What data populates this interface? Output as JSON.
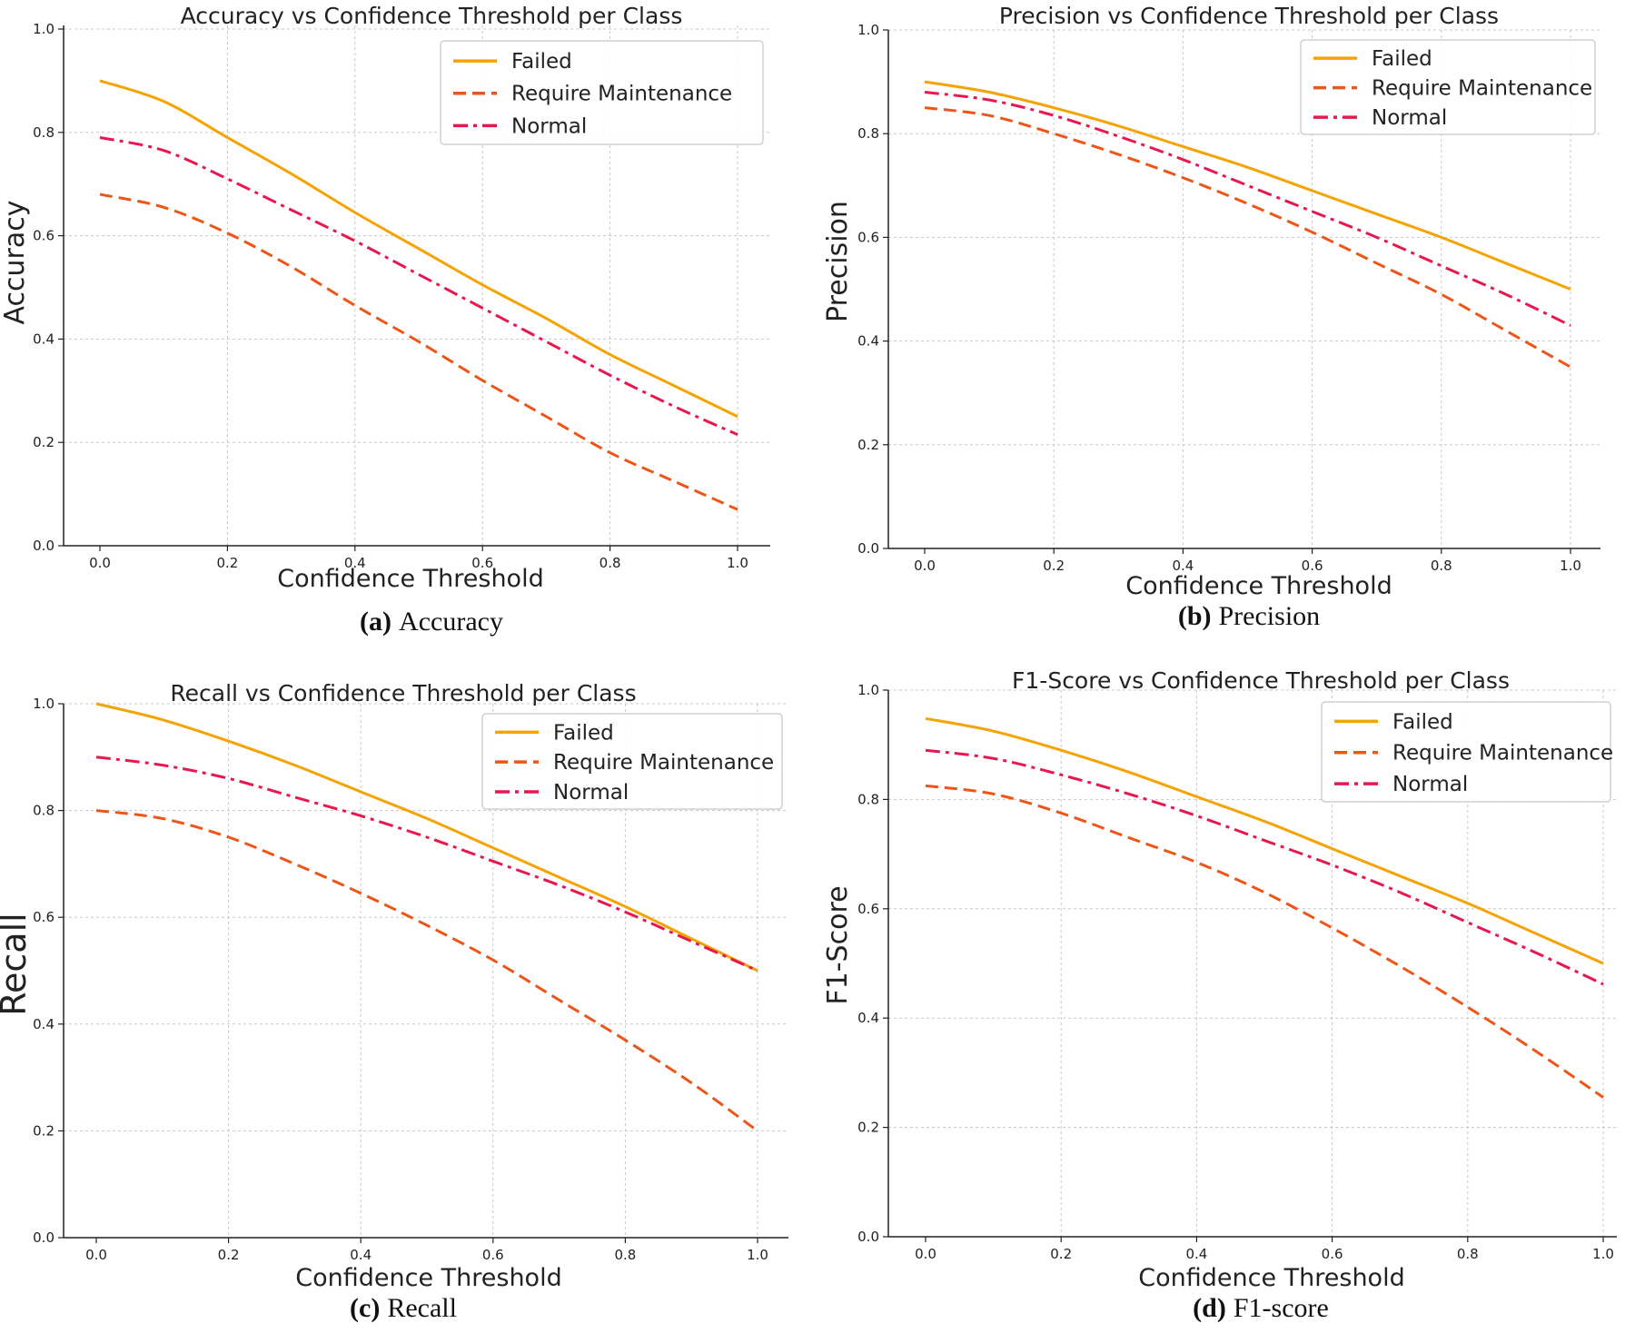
{
  "colors": {
    "failed": "#f5a300",
    "require_maintenance": "#ee5518",
    "normal": "#e8174f",
    "grid": "#c8c8c8",
    "axis": "#222222"
  },
  "chart_data": [
    {
      "type": "line",
      "title": "Accuracy vs Confidence Threshold per Class",
      "xlabel": "Confidence Threshold",
      "ylabel": "Accuracy",
      "xlim": [
        0,
        1
      ],
      "ylim": [
        0,
        1
      ],
      "xticks": [
        "0.0",
        "0.2",
        "0.4",
        "0.6",
        "0.8",
        "1.0"
      ],
      "yticks": [
        "0.0",
        "0.2",
        "0.4",
        "0.6",
        "0.8",
        "1.0"
      ],
      "grid": true,
      "legend": "top-right",
      "caption": {
        "label": "(a)",
        "text": "Accuracy"
      },
      "x": [
        0.0,
        0.1,
        0.2,
        0.3,
        0.4,
        0.5,
        0.6,
        0.7,
        0.8,
        0.9,
        1.0
      ],
      "series": [
        {
          "name": "Failed",
          "style": "solid",
          "values": [
            0.9,
            0.86,
            0.79,
            0.72,
            0.645,
            0.575,
            0.505,
            0.44,
            0.37,
            0.31,
            0.25
          ]
        },
        {
          "name": "Require Maintenance",
          "style": "dashed",
          "values": [
            0.68,
            0.655,
            0.605,
            0.54,
            0.465,
            0.395,
            0.32,
            0.25,
            0.18,
            0.125,
            0.07
          ]
        },
        {
          "name": "Normal",
          "style": "dashdot",
          "values": [
            0.79,
            0.765,
            0.71,
            0.65,
            0.59,
            0.525,
            0.46,
            0.395,
            0.33,
            0.27,
            0.215
          ]
        }
      ]
    },
    {
      "type": "line",
      "title": "Precision vs Confidence Threshold per Class",
      "xlabel": "Confidence Threshold",
      "ylabel": "Precision",
      "xlim": [
        0,
        1
      ],
      "ylim": [
        0,
        1
      ],
      "xticks": [
        "0.0",
        "0.2",
        "0.4",
        "0.6",
        "0.8",
        "1.0"
      ],
      "yticks": [
        "0.0",
        "0.2",
        "0.4",
        "0.6",
        "0.8",
        "1.0"
      ],
      "grid": true,
      "legend": "top-right",
      "caption": {
        "label": "(b)",
        "text": "Precision"
      },
      "x": [
        0.0,
        0.1,
        0.2,
        0.3,
        0.4,
        0.5,
        0.6,
        0.7,
        0.8,
        0.9,
        1.0
      ],
      "series": [
        {
          "name": "Failed",
          "style": "solid",
          "values": [
            0.9,
            0.88,
            0.85,
            0.815,
            0.775,
            0.735,
            0.69,
            0.645,
            0.6,
            0.55,
            0.5
          ]
        },
        {
          "name": "Require Maintenance",
          "style": "dashed",
          "values": [
            0.85,
            0.835,
            0.8,
            0.76,
            0.715,
            0.665,
            0.61,
            0.55,
            0.49,
            0.42,
            0.35
          ]
        },
        {
          "name": "Normal",
          "style": "dashdot",
          "values": [
            0.88,
            0.865,
            0.835,
            0.795,
            0.75,
            0.7,
            0.65,
            0.6,
            0.545,
            0.49,
            0.43
          ]
        }
      ]
    },
    {
      "type": "line",
      "title": "Recall vs Confidence Threshold per Class",
      "xlabel": "Confidence Threshold",
      "ylabel": "Recall",
      "xlim": [
        0,
        1
      ],
      "ylim": [
        0,
        1
      ],
      "xticks": [
        "0.0",
        "0.2",
        "0.4",
        "0.6",
        "0.8",
        "1.0"
      ],
      "yticks": [
        "0.0",
        "0.2",
        "0.4",
        "0.6",
        "0.8",
        "1.0"
      ],
      "grid": true,
      "legend": "top-right",
      "caption": {
        "label": "(c)",
        "text": "Recall"
      },
      "x": [
        0.0,
        0.1,
        0.2,
        0.3,
        0.4,
        0.5,
        0.6,
        0.7,
        0.8,
        0.9,
        1.0
      ],
      "series": [
        {
          "name": "Failed",
          "style": "solid",
          "values": [
            1.0,
            0.97,
            0.93,
            0.885,
            0.835,
            0.785,
            0.73,
            0.675,
            0.62,
            0.56,
            0.5
          ]
        },
        {
          "name": "Require Maintenance",
          "style": "dashed",
          "values": [
            0.8,
            0.785,
            0.75,
            0.7,
            0.645,
            0.585,
            0.52,
            0.445,
            0.37,
            0.29,
            0.2
          ]
        },
        {
          "name": "Normal",
          "style": "dashdot",
          "values": [
            0.9,
            0.885,
            0.86,
            0.825,
            0.79,
            0.75,
            0.705,
            0.66,
            0.61,
            0.555,
            0.5
          ]
        }
      ]
    },
    {
      "type": "line",
      "title": "F1-Score vs Confidence Threshold per Class",
      "xlabel": "Confidence Threshold",
      "ylabel": "F1-Score",
      "xlim": [
        0,
        1
      ],
      "ylim": [
        0,
        1
      ],
      "xticks": [
        "0.0",
        "0.2",
        "0.4",
        "0.6",
        "0.8",
        "1.0"
      ],
      "yticks": [
        "0.0",
        "0.2",
        "0.4",
        "0.6",
        "0.8",
        "1.0"
      ],
      "grid": true,
      "legend": "top-right",
      "caption": {
        "label": "(d)",
        "text": "F1-score"
      },
      "x": [
        0.0,
        0.1,
        0.2,
        0.3,
        0.4,
        0.5,
        0.6,
        0.7,
        0.8,
        0.9,
        1.0
      ],
      "series": [
        {
          "name": "Failed",
          "style": "solid",
          "values": [
            0.948,
            0.925,
            0.89,
            0.85,
            0.805,
            0.76,
            0.71,
            0.66,
            0.61,
            0.555,
            0.5
          ]
        },
        {
          "name": "Require Maintenance",
          "style": "dashed",
          "values": [
            0.825,
            0.81,
            0.775,
            0.73,
            0.685,
            0.63,
            0.565,
            0.495,
            0.42,
            0.34,
            0.255
          ]
        },
        {
          "name": "Normal",
          "style": "dashdot",
          "values": [
            0.89,
            0.875,
            0.845,
            0.81,
            0.77,
            0.725,
            0.68,
            0.63,
            0.575,
            0.52,
            0.462
          ]
        }
      ]
    }
  ]
}
